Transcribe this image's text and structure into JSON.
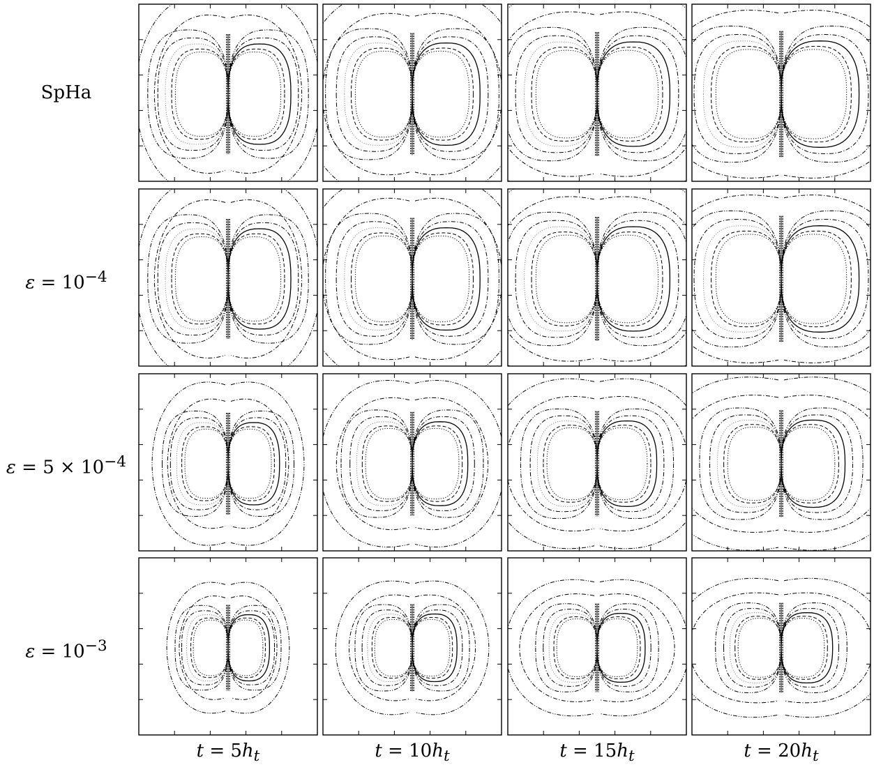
{
  "figure": {
    "rows": [
      {
        "name": "SpHa",
        "label_html": "SpHa",
        "eps": 0
      },
      {
        "name": "eps-1e-4",
        "label_html": "<span class=\"it\">ε</span> = 10<sup>−4</sup>",
        "eps": 0.0001
      },
      {
        "name": "eps-5e-4",
        "label_html": "<span class=\"it\">ε</span> = 5 × 10<sup>−4</sup>",
        "eps": 0.0005
      },
      {
        "name": "eps-1e-3",
        "label_html": "<span class=\"it\">ε</span> = 10<sup>−3</sup>",
        "eps": 0.001
      }
    ],
    "columns": [
      {
        "name": "t-5",
        "label_html": "<span class=\"it\">t</span> = 5<span class=\"it\">h<sub>t</sub></span>",
        "t_over_ht": 5
      },
      {
        "name": "t-10",
        "label_html": "<span class=\"it\">t</span> = 10<span class=\"it\">h<sub>t</sub></span>",
        "t_over_ht": 10
      },
      {
        "name": "t-15",
        "label_html": "<span class=\"it\">t</span> = 15<span class=\"it\">h<sub>t</sub></span>",
        "t_over_ht": 15
      },
      {
        "name": "t-20",
        "label_html": "<span class=\"it\">t</span> = 20<span class=\"it\">h<sub>t</sub></span>",
        "t_over_ht": 20
      }
    ],
    "contour_line_styles": [
      "solid",
      "dashed",
      "dotted",
      "dash-dot",
      "dash-dot-dot",
      "grey-dotted"
    ],
    "stroke_color": "#000000",
    "grey_color": "#888888"
  }
}
